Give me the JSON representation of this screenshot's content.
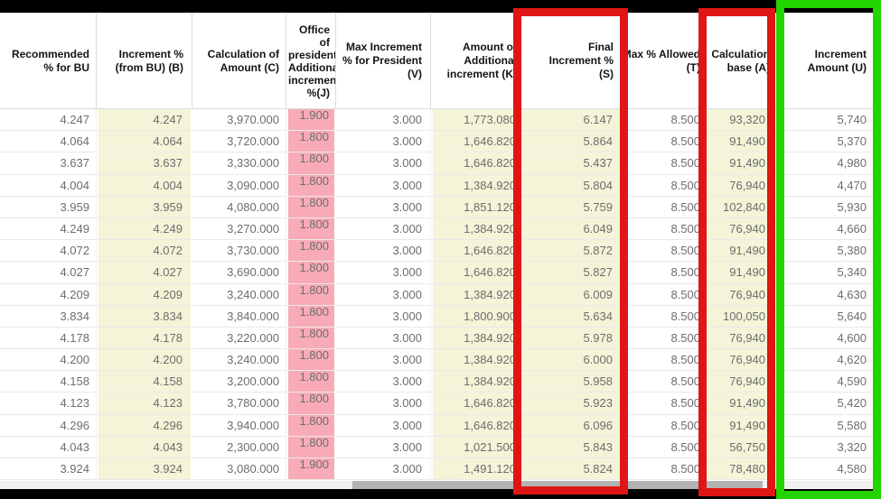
{
  "colors": {
    "annotation_red": "#e01515",
    "annotation_green": "#22d400",
    "column_highlight_yellow": "#f4f4d8",
    "column_highlight_pink": "#f8abb6",
    "redaction_black": "#000000"
  },
  "table": {
    "columns": [
      {
        "id": "recommended_pct_bu",
        "label": "Recommended % for BU"
      },
      {
        "id": "increment_pct_from_bu_b",
        "label": "Increment % (from BU) (B)"
      },
      {
        "id": "calculation_of_amount_c",
        "label": "Calculation of Amount (C)"
      },
      {
        "id": "office_president_additional_increment_j",
        "label": "Office of president Additional increment %(J)"
      },
      {
        "id": "max_increment_pct_president_v",
        "label": "Max Increment % for President (V)"
      },
      {
        "id": "amount_of_additional_increment_k",
        "label": "Amount of Additional increment (K)"
      },
      {
        "id": "final_increment_pct_s",
        "label": "Final Increment % (S)"
      },
      {
        "id": "max_pct_allowed_t",
        "label": "Max % Allowed (T)"
      },
      {
        "id": "calculation_base_a",
        "label": "Calculation base (A)"
      },
      {
        "id": "increment_amount_u",
        "label": "Increment Amount (U)"
      }
    ],
    "rows": [
      [
        "4.247",
        "4.247",
        "3,970.000",
        "1.900",
        "3.000",
        "1,773.080",
        "6.147",
        "8.500",
        "93,320",
        "5,740"
      ],
      [
        "4.064",
        "4.064",
        "3,720.000",
        "1.800",
        "3.000",
        "1,646.820",
        "5.864",
        "8.500",
        "91,490",
        "5,370"
      ],
      [
        "3.637",
        "3.637",
        "3,330.000",
        "1.800",
        "3.000",
        "1,646.820",
        "5.437",
        "8.500",
        "91,490",
        "4,980"
      ],
      [
        "4.004",
        "4.004",
        "3,090.000",
        "1.800",
        "3.000",
        "1,384.920",
        "5.804",
        "8.500",
        "76,940",
        "4,470"
      ],
      [
        "3.959",
        "3.959",
        "4,080.000",
        "1.800",
        "3.000",
        "1,851.120",
        "5.759",
        "8.500",
        "102,840",
        "5,930"
      ],
      [
        "4.249",
        "4.249",
        "3,270.000",
        "1.800",
        "3.000",
        "1,384.920",
        "6.049",
        "8.500",
        "76,940",
        "4,660"
      ],
      [
        "4.072",
        "4.072",
        "3,730.000",
        "1.800",
        "3.000",
        "1,646.820",
        "5.872",
        "8.500",
        "91,490",
        "5,380"
      ],
      [
        "4.027",
        "4.027",
        "3,690.000",
        "1.800",
        "3.000",
        "1,646.820",
        "5.827",
        "8.500",
        "91,490",
        "5,340"
      ],
      [
        "4.209",
        "4.209",
        "3,240.000",
        "1.800",
        "3.000",
        "1,384.920",
        "6.009",
        "8.500",
        "76,940",
        "4,630"
      ],
      [
        "3.834",
        "3.834",
        "3,840.000",
        "1.800",
        "3.000",
        "1,800.900",
        "5.634",
        "8.500",
        "100,050",
        "5,640"
      ],
      [
        "4.178",
        "4.178",
        "3,220.000",
        "1.800",
        "3.000",
        "1,384.920",
        "5.978",
        "8.500",
        "76,940",
        "4,600"
      ],
      [
        "4.200",
        "4.200",
        "3,240.000",
        "1.800",
        "3.000",
        "1,384.920",
        "6.000",
        "8.500",
        "76,940",
        "4,620"
      ],
      [
        "4.158",
        "4.158",
        "3,200.000",
        "1.800",
        "3.000",
        "1,384.920",
        "5.958",
        "8.500",
        "76,940",
        "4,590"
      ],
      [
        "4.123",
        "4.123",
        "3,780.000",
        "1.800",
        "3.000",
        "1,646.820",
        "5.923",
        "8.500",
        "91,490",
        "5,420"
      ],
      [
        "4.296",
        "4.296",
        "3,940.000",
        "1.800",
        "3.000",
        "1,646.820",
        "6.096",
        "8.500",
        "91,490",
        "5,580"
      ],
      [
        "4.043",
        "4.043",
        "2,300.000",
        "1.800",
        "3.000",
        "1,021.500",
        "5.843",
        "8.500",
        "56,750",
        "3,320"
      ],
      [
        "3.924",
        "3.924",
        "3,080.000",
        "1.900",
        "3.000",
        "1,491.120",
        "5.824",
        "8.500",
        "78,480",
        "4,580"
      ]
    ]
  },
  "annotations": {
    "red_box_1_target": "Final Increment % (S) column",
    "red_box_2_target": "Calculation base (A) column",
    "green_box_target": "Increment Amount (U) column"
  }
}
